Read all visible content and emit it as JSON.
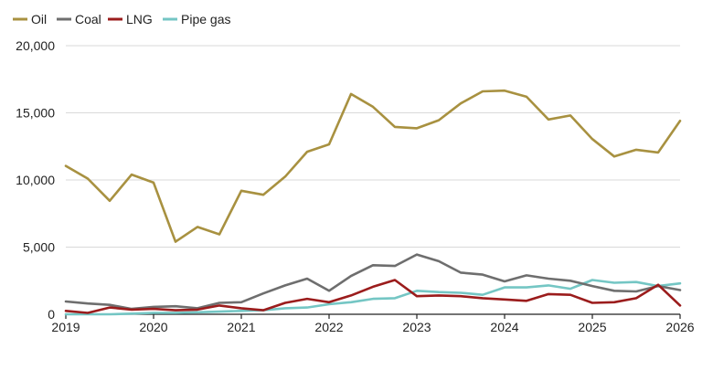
{
  "chart_data": {
    "type": "line",
    "title": "",
    "xlabel": "",
    "ylabel": "",
    "ylim": [
      0,
      20000
    ],
    "xlim": [
      2019,
      2026
    ],
    "legend_position": "top-left",
    "grid": "horizontal",
    "x_ticks": [
      2019,
      2020,
      2021,
      2022,
      2023,
      2024,
      2025,
      2026
    ],
    "x_tick_labels": [
      "2019",
      "2020",
      "2021",
      "2022",
      "2023",
      "2024",
      "2025",
      "2026"
    ],
    "y_ticks": [
      0,
      5000,
      10000,
      15000,
      20000
    ],
    "y_tick_labels": [
      "0",
      "5,000",
      "10,000",
      "15,000",
      "20,000"
    ],
    "x": [
      2019.0,
      2019.25,
      2019.5,
      2019.75,
      2020.0,
      2020.25,
      2020.5,
      2020.75,
      2021.0,
      2021.25,
      2021.5,
      2021.75,
      2022.0,
      2022.25,
      2022.5,
      2022.75,
      2023.0,
      2023.25,
      2023.5,
      2023.75,
      2024.0,
      2024.25,
      2024.5,
      2024.75,
      2025.0,
      2025.25,
      2025.5,
      2025.75,
      2026.0
    ],
    "series": [
      {
        "name": "Oil",
        "color": "#a89140",
        "values": [
          11050,
          10100,
          8450,
          10400,
          9800,
          5400,
          6500,
          5950,
          9200,
          8900,
          10250,
          12100,
          12650,
          16400,
          15450,
          13950,
          13850,
          14450,
          15700,
          16600,
          16650,
          16200,
          14500,
          14800,
          13050,
          11750,
          12250,
          12050,
          14400
        ]
      },
      {
        "name": "Coal",
        "color": "#6e6e6e",
        "values": [
          950,
          800,
          700,
          400,
          550,
          600,
          450,
          850,
          900,
          1550,
          2150,
          2650,
          1750,
          2850,
          3650,
          3600,
          4450,
          3950,
          3100,
          2950,
          2450,
          2900,
          2650,
          2500,
          2100,
          1750,
          1700,
          2100,
          1800
        ]
      },
      {
        "name": "LNG",
        "color": "#9b1c1c",
        "values": [
          250,
          100,
          500,
          350,
          400,
          300,
          350,
          650,
          450,
          300,
          850,
          1150,
          900,
          1400,
          2050,
          2550,
          1350,
          1400,
          1350,
          1200,
          1100,
          1000,
          1500,
          1450,
          850,
          900,
          1200,
          2200,
          650
        ]
      },
      {
        "name": "Pipe gas",
        "color": "#74c6c4",
        "values": [
          0,
          0,
          0,
          50,
          100,
          100,
          150,
          200,
          250,
          300,
          450,
          500,
          750,
          900,
          1150,
          1200,
          1750,
          1650,
          1600,
          1450,
          2000,
          2000,
          2150,
          1900,
          2550,
          2350,
          2400,
          2100,
          2300
        ]
      }
    ]
  }
}
